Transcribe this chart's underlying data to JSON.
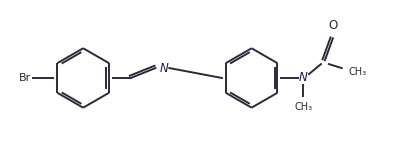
{
  "bg_color": "#ffffff",
  "line_color": "#2a2a3a",
  "line_width": 1.4,
  "fig_width": 4.17,
  "fig_height": 1.5,
  "dpi": 100,
  "xlim": [
    0,
    4.17
  ],
  "ylim": [
    0,
    1.5
  ]
}
